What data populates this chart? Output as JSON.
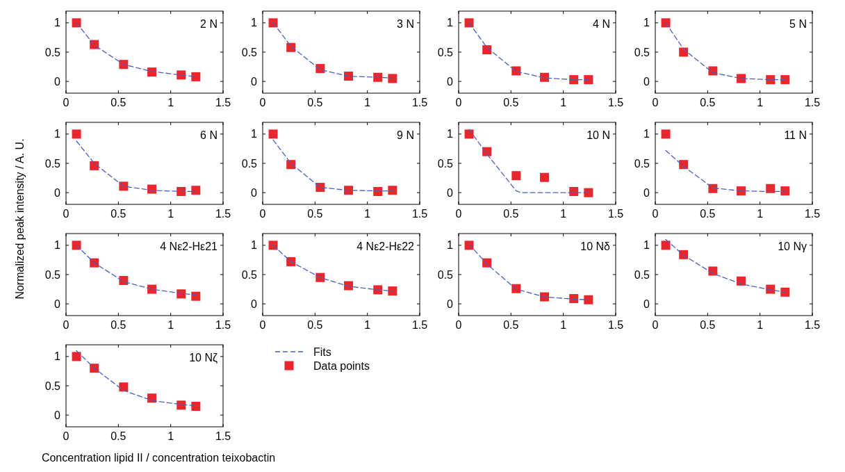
{
  "chart_data": [
    {
      "type": "scatter",
      "title": "2 N",
      "x": [
        0.1,
        0.27,
        0.55,
        0.82,
        1.1,
        1.24
      ],
      "xlim": [
        0,
        1.5
      ],
      "xticks": [
        0,
        0.5,
        1,
        1.5
      ],
      "ylim": [
        -0.2,
        1.2
      ],
      "yticks": [
        0,
        0.5,
        1
      ],
      "grid": false,
      "legend": false,
      "series": [
        {
          "type": "line",
          "line_style": "dashed",
          "marker": "none",
          "color": "#4a5fc1",
          "x": [
            0.1,
            0.27,
            0.55,
            0.82,
            1.1,
            1.24
          ],
          "values": [
            1.0,
            0.62,
            0.29,
            0.17,
            0.11,
            0.08
          ]
        },
        {
          "type": "scatter",
          "marker": "square",
          "color": "#e8262b",
          "values": [
            1,
            0.63,
            0.29,
            0.16,
            0.11,
            0.08
          ]
        }
      ]
    },
    {
      "type": "scatter",
      "title": "3 N",
      "x": [
        0.1,
        0.27,
        0.55,
        0.82,
        1.1,
        1.24
      ],
      "xlim": [
        0,
        1.5
      ],
      "xticks": [
        0,
        0.5,
        1,
        1.5
      ],
      "ylim": [
        -0.2,
        1.2
      ],
      "yticks": [
        0,
        0.5,
        1
      ],
      "grid": false,
      "legend": false,
      "series": [
        {
          "type": "line",
          "line_style": "dashed",
          "marker": "none",
          "color": "#4a5fc1",
          "x": [
            0.1,
            0.27,
            0.55,
            0.82,
            1.1,
            1.24
          ],
          "values": [
            1.0,
            0.6,
            0.2,
            0.09,
            0.07,
            0.06
          ]
        },
        {
          "type": "scatter",
          "marker": "square",
          "color": "#e8262b",
          "values": [
            1,
            0.58,
            0.22,
            0.09,
            0.07,
            0.05
          ]
        }
      ]
    },
    {
      "type": "scatter",
      "title": "4 N",
      "x": [
        0.1,
        0.27,
        0.55,
        0.82,
        1.1,
        1.24
      ],
      "xlim": [
        0,
        1.5
      ],
      "xticks": [
        0,
        0.5,
        1,
        1.5
      ],
      "ylim": [
        -0.2,
        1.2
      ],
      "yticks": [
        0,
        0.5,
        1
      ],
      "grid": false,
      "legend": false,
      "series": [
        {
          "type": "line",
          "line_style": "dashed",
          "marker": "none",
          "color": "#4a5fc1",
          "x": [
            0.1,
            0.27,
            0.55,
            0.82,
            1.1,
            1.24
          ],
          "values": [
            1.0,
            0.58,
            0.17,
            0.06,
            0.03,
            0.03
          ]
        },
        {
          "type": "scatter",
          "marker": "square",
          "color": "#e8262b",
          "values": [
            1,
            0.54,
            0.18,
            0.07,
            0.03,
            0.03
          ]
        }
      ]
    },
    {
      "type": "scatter",
      "title": "5 N",
      "x": [
        0.1,
        0.27,
        0.55,
        0.82,
        1.1,
        1.24
      ],
      "xlim": [
        0,
        1.5
      ],
      "xticks": [
        0,
        0.5,
        1,
        1.5
      ],
      "ylim": [
        -0.2,
        1.2
      ],
      "yticks": [
        0,
        0.5,
        1
      ],
      "grid": false,
      "legend": false,
      "series": [
        {
          "type": "line",
          "line_style": "dashed",
          "marker": "none",
          "color": "#4a5fc1",
          "x": [
            0.1,
            0.27,
            0.55,
            0.82,
            1.1,
            1.24
          ],
          "values": [
            1.0,
            0.55,
            0.15,
            0.05,
            0.03,
            0.03
          ]
        },
        {
          "type": "scatter",
          "marker": "square",
          "color": "#e8262b",
          "values": [
            1,
            0.5,
            0.18,
            0.05,
            0.03,
            0.03
          ]
        }
      ]
    },
    {
      "type": "scatter",
      "title": "6 N",
      "ylabel": "Normalized peak intensity / A. U.",
      "x": [
        0.1,
        0.27,
        0.55,
        0.82,
        1.1,
        1.24
      ],
      "xlim": [
        0,
        1.5
      ],
      "xticks": [
        0,
        0.5,
        1,
        1.5
      ],
      "ylim": [
        -0.2,
        1.2
      ],
      "yticks": [
        0,
        0.5,
        1
      ],
      "grid": false,
      "legend": false,
      "series": [
        {
          "type": "line",
          "line_style": "dashed",
          "marker": "none",
          "color": "#4a5fc1",
          "x": [
            0.1,
            0.27,
            0.55,
            0.82,
            1.1,
            1.24
          ],
          "values": [
            0.88,
            0.5,
            0.11,
            0.04,
            0.02,
            0.02
          ]
        },
        {
          "type": "scatter",
          "marker": "square",
          "color": "#e8262b",
          "values": [
            1,
            0.46,
            0.11,
            0.06,
            0.02,
            0.04
          ]
        }
      ]
    },
    {
      "type": "scatter",
      "title": "9 N",
      "x": [
        0.1,
        0.27,
        0.55,
        0.82,
        1.1,
        1.24
      ],
      "xlim": [
        0,
        1.5
      ],
      "xticks": [
        0,
        0.5,
        1,
        1.5
      ],
      "ylim": [
        -0.2,
        1.2
      ],
      "yticks": [
        0,
        0.5,
        1
      ],
      "grid": false,
      "legend": false,
      "series": [
        {
          "type": "line",
          "line_style": "dashed",
          "marker": "none",
          "color": "#4a5fc1",
          "x": [
            0.1,
            0.27,
            0.55,
            0.82,
            1.1,
            1.24
          ],
          "values": [
            0.9,
            0.5,
            0.09,
            0.04,
            0.03,
            0.03
          ]
        },
        {
          "type": "scatter",
          "marker": "square",
          "color": "#e8262b",
          "values": [
            1,
            0.48,
            0.09,
            0.04,
            0.02,
            0.04
          ]
        }
      ]
    },
    {
      "type": "scatter",
      "title": "10 N",
      "x": [
        0.1,
        0.27,
        0.55,
        0.82,
        1.1,
        1.24
      ],
      "xlim": [
        0,
        1.5
      ],
      "xticks": [
        0,
        0.5,
        1,
        1.5
      ],
      "ylim": [
        -0.2,
        1.2
      ],
      "yticks": [
        0,
        0.5,
        1
      ],
      "grid": false,
      "legend": false,
      "series": [
        {
          "type": "line",
          "line_style": "dashed",
          "marker": "none",
          "color": "#4a5fc1",
          "x": [
            0.1,
            0.27,
            0.55,
            0.6,
            1.1,
            1.24
          ],
          "values": [
            1.08,
            0.66,
            0.03,
            0.0,
            0.0,
            0.0
          ]
        },
        {
          "type": "scatter",
          "marker": "square",
          "color": "#e8262b",
          "values": [
            1,
            0.7,
            0.29,
            0.26,
            0.02,
            0.0
          ]
        }
      ]
    },
    {
      "type": "scatter",
      "title": "11 N",
      "x": [
        0.1,
        0.27,
        0.55,
        0.82,
        1.1,
        1.24
      ],
      "xlim": [
        0,
        1.5
      ],
      "xticks": [
        0,
        0.5,
        1,
        1.5
      ],
      "ylim": [
        -0.2,
        1.2
      ],
      "yticks": [
        0,
        0.5,
        1
      ],
      "grid": false,
      "legend": false,
      "series": [
        {
          "type": "line",
          "line_style": "dashed",
          "marker": "none",
          "color": "#4a5fc1",
          "x": [
            0.1,
            0.27,
            0.55,
            0.82,
            1.1,
            1.24
          ],
          "values": [
            0.72,
            0.45,
            0.08,
            0.03,
            0.02,
            0.02
          ]
        },
        {
          "type": "scatter",
          "marker": "square",
          "color": "#e8262b",
          "values": [
            1,
            0.48,
            0.07,
            0.03,
            0.07,
            0.03
          ]
        }
      ]
    },
    {
      "type": "scatter",
      "title": "4 Nε2-Hε21",
      "x": [
        0.1,
        0.27,
        0.55,
        0.82,
        1.1,
        1.24
      ],
      "xlim": [
        0,
        1.5
      ],
      "xticks": [
        0,
        0.5,
        1,
        1.5
      ],
      "ylim": [
        -0.2,
        1.2
      ],
      "yticks": [
        0,
        0.5,
        1
      ],
      "grid": false,
      "legend": false,
      "series": [
        {
          "type": "line",
          "line_style": "dashed",
          "marker": "none",
          "color": "#4a5fc1",
          "x": [
            0.1,
            0.27,
            0.55,
            0.82,
            1.1,
            1.24
          ],
          "values": [
            1.0,
            0.7,
            0.38,
            0.25,
            0.18,
            0.15
          ]
        },
        {
          "type": "scatter",
          "marker": "square",
          "color": "#e8262b",
          "values": [
            1,
            0.7,
            0.4,
            0.25,
            0.17,
            0.13
          ]
        }
      ]
    },
    {
      "type": "scatter",
      "title": "4 Nε2-Hε22",
      "x": [
        0.1,
        0.27,
        0.55,
        0.82,
        1.1,
        1.24
      ],
      "xlim": [
        0,
        1.5
      ],
      "xticks": [
        0,
        0.5,
        1,
        1.5
      ],
      "ylim": [
        -0.2,
        1.2
      ],
      "yticks": [
        0,
        0.5,
        1
      ],
      "grid": false,
      "legend": false,
      "series": [
        {
          "type": "line",
          "line_style": "dashed",
          "marker": "none",
          "color": "#4a5fc1",
          "x": [
            0.1,
            0.27,
            0.55,
            0.82,
            1.1,
            1.24
          ],
          "values": [
            1.0,
            0.72,
            0.45,
            0.3,
            0.24,
            0.22
          ]
        },
        {
          "type": "scatter",
          "marker": "square",
          "color": "#e8262b",
          "values": [
            1,
            0.72,
            0.45,
            0.31,
            0.24,
            0.22
          ]
        }
      ]
    },
    {
      "type": "scatter",
      "title": "10 Nδ",
      "x": [
        0.1,
        0.27,
        0.55,
        0.82,
        1.1,
        1.24
      ],
      "xlim": [
        0,
        1.5
      ],
      "xticks": [
        0,
        0.5,
        1,
        1.5
      ],
      "ylim": [
        -0.2,
        1.2
      ],
      "yticks": [
        0,
        0.5,
        1
      ],
      "grid": false,
      "legend": false,
      "series": [
        {
          "type": "line",
          "line_style": "dashed",
          "marker": "none",
          "color": "#4a5fc1",
          "x": [
            0.1,
            0.27,
            0.55,
            0.82,
            1.1,
            1.24
          ],
          "values": [
            1.02,
            0.68,
            0.25,
            0.12,
            0.08,
            0.07
          ]
        },
        {
          "type": "scatter",
          "marker": "square",
          "color": "#e8262b",
          "values": [
            1,
            0.7,
            0.26,
            0.12,
            0.09,
            0.07
          ]
        }
      ]
    },
    {
      "type": "scatter",
      "title": "10 Nγ",
      "x": [
        0.1,
        0.27,
        0.55,
        0.82,
        1.1,
        1.24
      ],
      "xlim": [
        0,
        1.5
      ],
      "xticks": [
        0,
        0.5,
        1,
        1.5
      ],
      "ylim": [
        -0.2,
        1.2
      ],
      "yticks": [
        0,
        0.5,
        1
      ],
      "grid": false,
      "legend": false,
      "series": [
        {
          "type": "line",
          "line_style": "dashed",
          "marker": "none",
          "color": "#4a5fc1",
          "x": [
            0.1,
            0.27,
            0.55,
            0.82,
            1.1,
            1.24
          ],
          "values": [
            1.1,
            0.83,
            0.52,
            0.34,
            0.24,
            0.2
          ]
        },
        {
          "type": "scatter",
          "marker": "square",
          "color": "#e8262b",
          "values": [
            1,
            0.84,
            0.56,
            0.39,
            0.25,
            0.2
          ]
        }
      ]
    },
    {
      "type": "scatter",
      "title": "10 Nζ",
      "xlabel": "Concentration lipid II / concentration teixobactin",
      "x": [
        0.1,
        0.27,
        0.55,
        0.82,
        1.1,
        1.24
      ],
      "xlim": [
        0,
        1.5
      ],
      "xticks": [
        0,
        0.5,
        1,
        1.5
      ],
      "ylim": [
        -0.2,
        1.2
      ],
      "yticks": [
        0,
        0.5,
        1
      ],
      "grid": false,
      "legend": "right",
      "series": [
        {
          "name": "Fits",
          "type": "line",
          "line_style": "dashed",
          "marker": "none",
          "color": "#4a5fc1",
          "x": [
            0.1,
            0.27,
            0.55,
            0.82,
            1.1,
            1.24
          ],
          "values": [
            1.1,
            0.8,
            0.42,
            0.25,
            0.18,
            0.16
          ]
        },
        {
          "name": "Data points",
          "type": "scatter",
          "marker": "square",
          "color": "#e8262b",
          "values": [
            1,
            0.8,
            0.48,
            0.29,
            0.17,
            0.15
          ]
        }
      ]
    }
  ]
}
